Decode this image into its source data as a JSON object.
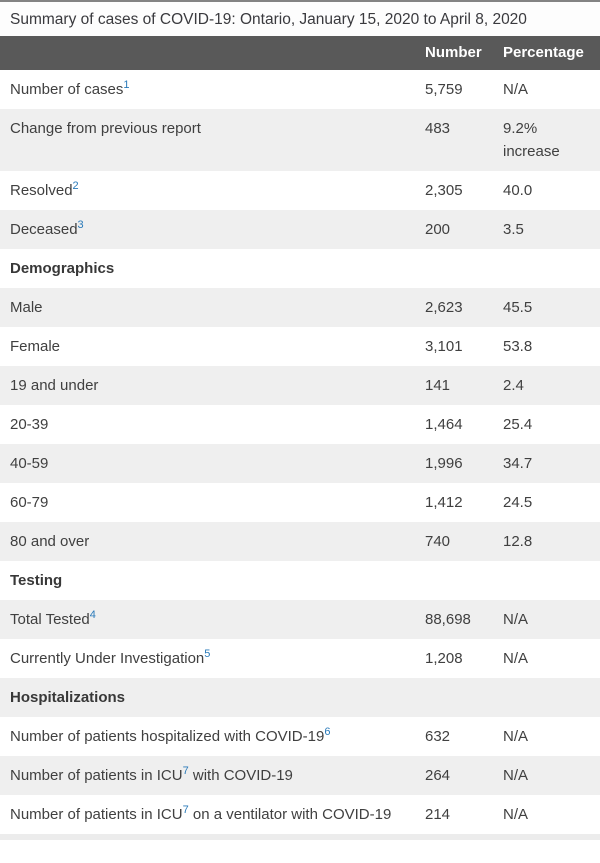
{
  "table": {
    "caption": "Summary of cases of COVID-19: Ontario, January 15, 2020 to April 8, 2020",
    "columns": [
      "",
      "Number",
      "Percentage"
    ],
    "rows": [
      {
        "type": "data",
        "parts": [
          [
            "text",
            "Number of cases"
          ],
          [
            "sup",
            "1"
          ]
        ],
        "number": "5,759",
        "percentage": "N/A"
      },
      {
        "type": "data",
        "parts": [
          [
            "text",
            "Change from previous report"
          ]
        ],
        "number": "483",
        "percentage": "9.2% increase"
      },
      {
        "type": "data",
        "parts": [
          [
            "text",
            "Resolved"
          ],
          [
            "sup",
            "2"
          ]
        ],
        "number": "2,305",
        "percentage": "40.0"
      },
      {
        "type": "data",
        "parts": [
          [
            "text",
            "Deceased"
          ],
          [
            "sup",
            "3"
          ]
        ],
        "number": "200",
        "percentage": "3.5"
      },
      {
        "type": "section",
        "parts": [
          [
            "text",
            "Demographics"
          ]
        ]
      },
      {
        "type": "data",
        "parts": [
          [
            "text",
            "Male"
          ]
        ],
        "number": "2,623",
        "percentage": "45.5"
      },
      {
        "type": "data",
        "parts": [
          [
            "text",
            "Female"
          ]
        ],
        "number": "3,101",
        "percentage": "53.8"
      },
      {
        "type": "data",
        "parts": [
          [
            "text",
            "19 and under"
          ]
        ],
        "number": "141",
        "percentage": "2.4"
      },
      {
        "type": "data",
        "parts": [
          [
            "text",
            "20-39"
          ]
        ],
        "number": "1,464",
        "percentage": "25.4"
      },
      {
        "type": "data",
        "parts": [
          [
            "text",
            "40-59"
          ]
        ],
        "number": "1,996",
        "percentage": "34.7"
      },
      {
        "type": "data",
        "parts": [
          [
            "text",
            "60-79"
          ]
        ],
        "number": "1,412",
        "percentage": "24.5"
      },
      {
        "type": "data",
        "parts": [
          [
            "text",
            "80 and over"
          ]
        ],
        "number": "740",
        "percentage": "12.8"
      },
      {
        "type": "section",
        "parts": [
          [
            "text",
            "Testing"
          ]
        ]
      },
      {
        "type": "data",
        "parts": [
          [
            "text",
            "Total Tested"
          ],
          [
            "sup",
            "4"
          ]
        ],
        "number": "88,698",
        "percentage": "N/A"
      },
      {
        "type": "data",
        "parts": [
          [
            "text",
            "Currently Under Investigation"
          ],
          [
            "sup",
            "5"
          ]
        ],
        "number": "1,208",
        "percentage": "N/A"
      },
      {
        "type": "section",
        "parts": [
          [
            "text",
            "Hospitalizations"
          ]
        ]
      },
      {
        "type": "data",
        "parts": [
          [
            "text",
            "Number of patients hospitalized with COVID-19"
          ],
          [
            "sup",
            "6"
          ]
        ],
        "number": "632",
        "percentage": "N/A"
      },
      {
        "type": "data",
        "parts": [
          [
            "text",
            "Number of patients in ICU"
          ],
          [
            "sup",
            "7"
          ],
          [
            "text",
            " with COVID-19"
          ]
        ],
        "number": "264",
        "percentage": "N/A"
      },
      {
        "type": "data",
        "parts": [
          [
            "text",
            "Number of patients in ICU"
          ],
          [
            "sup",
            "7"
          ],
          [
            "text",
            " on a ventilator with COVID-19"
          ]
        ],
        "number": "214",
        "percentage": "N/A"
      }
    ]
  },
  "chart_data": {
    "type": "table",
    "title": "Summary of cases of COVID-19: Ontario, January 15, 2020 to April 8, 2020",
    "columns": [
      "",
      "Number",
      "Percentage"
    ],
    "rows": [
      [
        "Number of cases",
        "5,759",
        "N/A"
      ],
      [
        "Change from previous report",
        "483",
        "9.2% increase"
      ],
      [
        "Resolved",
        "2,305",
        "40.0"
      ],
      [
        "Deceased",
        "200",
        "3.5"
      ],
      [
        "Demographics",
        "",
        ""
      ],
      [
        "Male",
        "2,623",
        "45.5"
      ],
      [
        "Female",
        "3,101",
        "53.8"
      ],
      [
        "19 and under",
        "141",
        "2.4"
      ],
      [
        "20-39",
        "1,464",
        "25.4"
      ],
      [
        "40-59",
        "1,996",
        "34.7"
      ],
      [
        "60-79",
        "1,412",
        "24.5"
      ],
      [
        "80 and over",
        "740",
        "12.8"
      ],
      [
        "Testing",
        "",
        ""
      ],
      [
        "Total Tested",
        "88,698",
        "N/A"
      ],
      [
        "Currently Under Investigation",
        "1,208",
        "N/A"
      ],
      [
        "Hospitalizations",
        "",
        ""
      ],
      [
        "Number of patients hospitalized with COVID-19",
        "632",
        "N/A"
      ],
      [
        "Number of patients in ICU with COVID-19",
        "264",
        "N/A"
      ],
      [
        "Number of patients in ICU on a ventilator with COVID-19",
        "214",
        "N/A"
      ]
    ],
    "footnote_markers": [
      "1",
      "2",
      "3",
      "4",
      "5",
      "6",
      "7"
    ]
  },
  "colors": {
    "header_bg": "#595959",
    "header_text": "#ffffff",
    "row_alt_bg": "#efefef",
    "body_text": "#404040",
    "footnote_link": "#2a7ab9",
    "top_border": "#838383"
  }
}
